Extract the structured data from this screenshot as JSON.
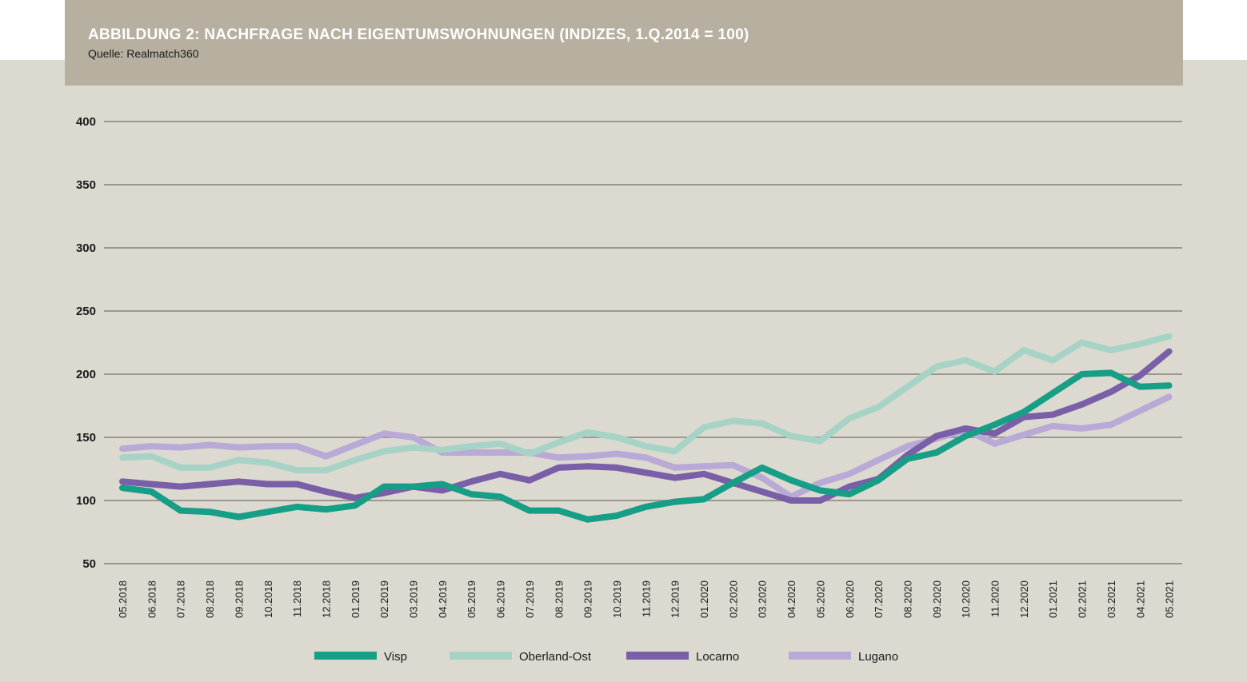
{
  "header": {
    "title": "ABBILDUNG 2: NACHFRAGE NACH EIGENTUMSWOHNUNGEN (INDIZES, 1.Q.2014 = 100)",
    "source": "Quelle: Realmatch360"
  },
  "chart_data": {
    "type": "line",
    "title": "ABBILDUNG 2: NACHFRAGE NACH EIGENTUMSWOHNUNGEN (INDIZES, 1.Q.2014 = 100)",
    "ylim": [
      50,
      400
    ],
    "yticks": [
      "400",
      "350",
      "300",
      "250",
      "200",
      "150",
      "100",
      "50"
    ],
    "grid": true,
    "legend_position": "bottom",
    "categories": [
      "05.2018",
      "06.2018",
      "07.2018",
      "08.2018",
      "09.2018",
      "10.2018",
      "11.2018",
      "12.2018",
      "01.2019",
      "02.2019",
      "03.2019",
      "04.2019",
      "05.2019",
      "06.2019",
      "07.2019",
      "08.2019",
      "09.2019",
      "10.2019",
      "11.2019",
      "12.2019",
      "01.2020",
      "02.2020",
      "03.2020",
      "04.2020",
      "05.2020",
      "06.2020",
      "07.2020",
      "08.2020",
      "09.2020",
      "10.2020",
      "11.2020",
      "12.2020",
      "01.2021",
      "02.2021",
      "03.2021",
      "04.2021",
      "05.2021"
    ],
    "series": [
      {
        "name": "Visp",
        "color": "#179e86",
        "values": [
          110,
          107,
          92,
          91,
          87,
          91,
          95,
          93,
          96,
          111,
          111,
          113,
          105,
          103,
          92,
          92,
          85,
          88,
          95,
          99,
          101,
          114,
          126,
          116,
          108,
          105,
          116,
          133,
          138,
          151,
          160,
          170,
          185,
          200,
          201,
          190,
          191
        ]
      },
      {
        "name": "Oberland-Ost",
        "color": "#a6d3c6",
        "values": [
          134,
          135,
          126,
          126,
          132,
          130,
          124,
          124,
          132,
          139,
          142,
          140,
          143,
          145,
          137,
          146,
          154,
          150,
          143,
          139,
          158,
          163,
          161,
          151,
          147,
          165,
          174,
          190,
          206,
          211,
          202,
          219,
          211,
          225,
          219,
          224,
          230
        ]
      },
      {
        "name": "Locarno",
        "color": "#7a5ea8",
        "values": [
          115,
          113,
          111,
          113,
          115,
          113,
          113,
          107,
          102,
          106,
          111,
          108,
          115,
          121,
          116,
          126,
          127,
          126,
          122,
          118,
          121,
          114,
          107,
          100,
          100,
          111,
          117,
          136,
          151,
          157,
          153,
          166,
          168,
          176,
          186,
          199,
          218
        ]
      },
      {
        "name": "Lugano",
        "color": "#b9a9d6",
        "values": [
          141,
          143,
          142,
          144,
          142,
          143,
          143,
          135,
          144,
          153,
          150,
          138,
          138,
          138,
          138,
          134,
          135,
          137,
          134,
          126,
          127,
          128,
          118,
          103,
          114,
          121,
          132,
          143,
          149,
          156,
          145,
          152,
          159,
          157,
          160,
          171,
          182
        ]
      }
    ]
  }
}
